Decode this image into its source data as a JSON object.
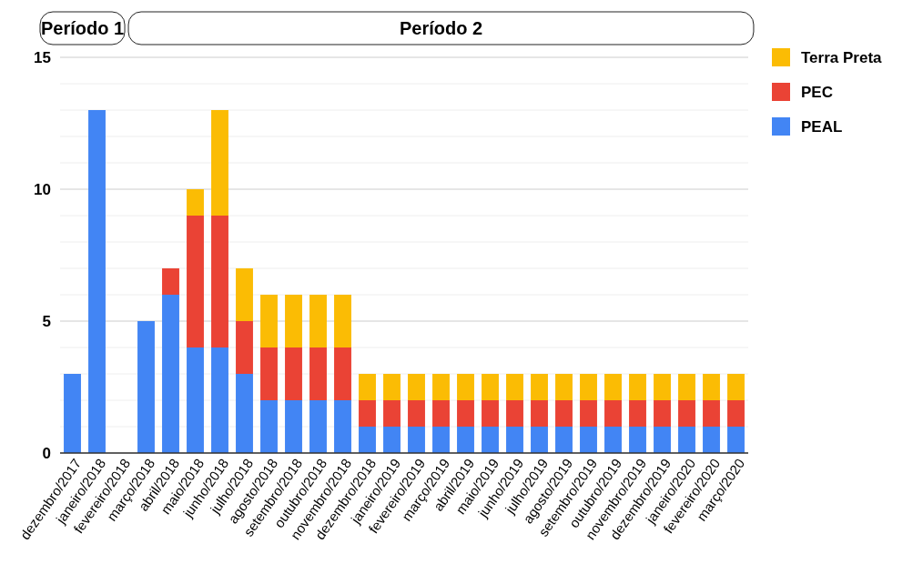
{
  "chart_data": {
    "type": "bar",
    "stacked": true,
    "categories": [
      "dezembro/2017",
      "janeiro/2018",
      "fevereiro/2018",
      "março/2018",
      "abril/2018",
      "maio/2018",
      "junho/2018",
      "julho/2018",
      "agosto/2018",
      "setembro/2018",
      "outubro/2018",
      "novembro/2018",
      "dezembro/2018",
      "janeiro/2019",
      "fevereiro/2019",
      "março/2019",
      "abril/2019",
      "maio/2019",
      "junho/2019",
      "julho/2019",
      "agosto/2019",
      "setembro/2019",
      "outubro/2019",
      "novembro/2019",
      "dezembro/2019",
      "janeiro/2020",
      "fevereiro/2020",
      "março/2020"
    ],
    "series": [
      {
        "name": "PEAL",
        "color": "#4285f4",
        "values": [
          3,
          13,
          0,
          5,
          6,
          4,
          4,
          3,
          2,
          2,
          2,
          2,
          1,
          1,
          1,
          1,
          1,
          1,
          1,
          1,
          1,
          1,
          1,
          1,
          1,
          1,
          1,
          1
        ]
      },
      {
        "name": "PEC",
        "color": "#ea4335",
        "values": [
          0,
          0,
          0,
          0,
          1,
          5,
          5,
          2,
          2,
          2,
          2,
          2,
          1,
          1,
          1,
          1,
          1,
          1,
          1,
          1,
          1,
          1,
          1,
          1,
          1,
          1,
          1,
          1
        ]
      },
      {
        "name": "Terra Preta",
        "color": "#fbbc04",
        "values": [
          0,
          0,
          0,
          0,
          0,
          1,
          4,
          2,
          2,
          2,
          2,
          2,
          1,
          1,
          1,
          1,
          1,
          1,
          1,
          1,
          1,
          1,
          1,
          1,
          1,
          1,
          1,
          1
        ]
      }
    ],
    "ylim": [
      0,
      15
    ],
    "yticks": [
      0,
      {
        "value": 1,
        "label": null
      },
      {
        "value": 2,
        "label": null
      },
      {
        "value": 3,
        "label": null
      },
      {
        "value": 4,
        "label": null
      },
      5,
      {
        "value": 6,
        "label": null
      },
      {
        "value": 7,
        "label": null
      },
      {
        "value": 8,
        "label": null
      },
      {
        "value": 9,
        "label": null
      },
      10,
      {
        "value": 11,
        "label": null
      },
      {
        "value": 12,
        "label": null
      },
      {
        "value": 13,
        "label": null
      },
      {
        "value": 14,
        "label": null
      },
      15
    ],
    "grid": "y",
    "legend": "top right",
    "annotations": [
      "Período 1",
      "Período 2"
    ]
  }
}
